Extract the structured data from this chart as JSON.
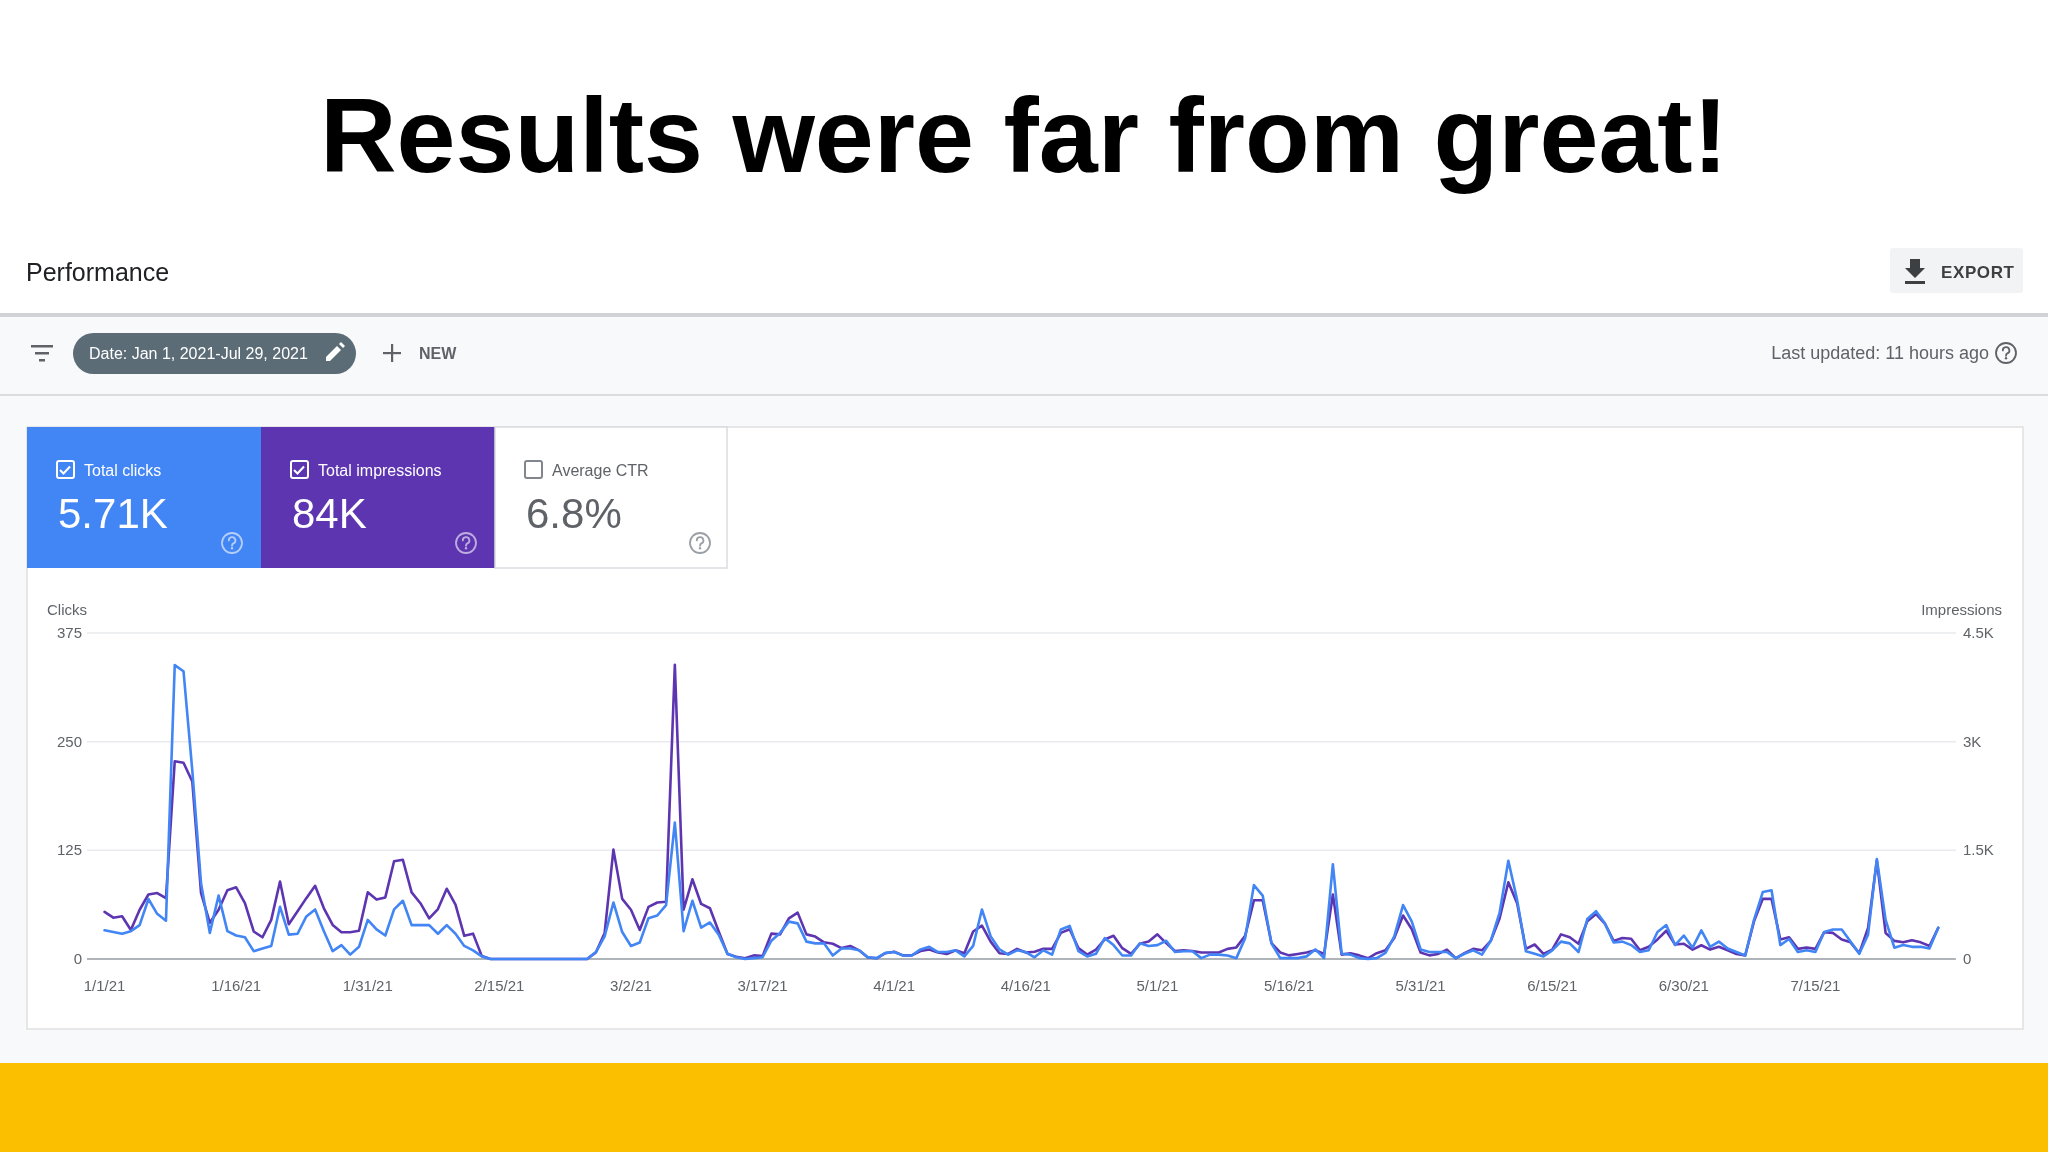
{
  "chart_data": {
    "type": "line",
    "title": "Results were far from great!",
    "subtitle": "Performance",
    "ylabel": "Clicks",
    "y2label": "Impressions",
    "annotations": [
      "EXPORT",
      "Date: Jan 1, 2021-Jul 29, 2021",
      "NEW",
      "Last updated: 11 hours ago",
      "5.71K",
      "84K",
      "Average CTR",
      "6.8%"
    ],
    "x": [
      "2021-01-01",
      "2021-01-02",
      "2021-01-03",
      "2021-01-04",
      "2021-01-05",
      "2021-01-06",
      "2021-01-07",
      "2021-01-08",
      "2021-01-09",
      "2021-01-10",
      "2021-01-11",
      "2021-01-12",
      "2021-01-13",
      "2021-01-14",
      "2021-01-15",
      "2021-01-16",
      "2021-01-17",
      "2021-01-18",
      "2021-01-19",
      "2021-01-20",
      "2021-01-21",
      "2021-01-22",
      "2021-01-23",
      "2021-01-24",
      "2021-01-25",
      "2021-01-26",
      "2021-01-27",
      "2021-01-28",
      "2021-01-29",
      "2021-01-30",
      "2021-01-31",
      "2021-02-01",
      "2021-02-02",
      "2021-02-03",
      "2021-02-04",
      "2021-02-05",
      "2021-02-06",
      "2021-02-07",
      "2021-02-08",
      "2021-02-09",
      "2021-02-10",
      "2021-02-11",
      "2021-02-12",
      "2021-02-13",
      "2021-02-14",
      "2021-02-15",
      "2021-02-16",
      "2021-02-17",
      "2021-02-18",
      "2021-02-19",
      "2021-02-20",
      "2021-02-21",
      "2021-02-22",
      "2021-02-23",
      "2021-02-24",
      "2021-02-25",
      "2021-02-26",
      "2021-02-27",
      "2021-02-28",
      "2021-03-01",
      "2021-03-02",
      "2021-03-03",
      "2021-03-04",
      "2021-03-05",
      "2021-03-06",
      "2021-03-07",
      "2021-03-08",
      "2021-03-09",
      "2021-03-10",
      "2021-03-11",
      "2021-03-12",
      "2021-03-13",
      "2021-03-14",
      "2021-03-15",
      "2021-03-16",
      "2021-03-17",
      "2021-03-18",
      "2021-03-19",
      "2021-03-20",
      "2021-03-21",
      "2021-03-22",
      "2021-03-23",
      "2021-03-24",
      "2021-03-25",
      "2021-03-26",
      "2021-03-27",
      "2021-03-28",
      "2021-03-29",
      "2021-03-30",
      "2021-03-31",
      "2021-04-01",
      "2021-04-02",
      "2021-04-03",
      "2021-04-04",
      "2021-04-05",
      "2021-04-06",
      "2021-04-07",
      "2021-04-08",
      "2021-04-09",
      "2021-04-10",
      "2021-04-11",
      "2021-04-12",
      "2021-04-13",
      "2021-04-14",
      "2021-04-15",
      "2021-04-16",
      "2021-04-17",
      "2021-04-18",
      "2021-04-19",
      "2021-04-20",
      "2021-04-21",
      "2021-04-22",
      "2021-04-23",
      "2021-04-24",
      "2021-04-25",
      "2021-04-26",
      "2021-04-27",
      "2021-04-28",
      "2021-04-29",
      "2021-04-30",
      "2021-05-01",
      "2021-05-02",
      "2021-05-03",
      "2021-05-04",
      "2021-05-05",
      "2021-05-06",
      "2021-05-07",
      "2021-05-08",
      "2021-05-09",
      "2021-05-10",
      "2021-05-11",
      "2021-05-12",
      "2021-05-13",
      "2021-05-14",
      "2021-05-15",
      "2021-05-16",
      "2021-05-17",
      "2021-05-18",
      "2021-05-19",
      "2021-05-20",
      "2021-05-21",
      "2021-05-22",
      "2021-05-23",
      "2021-05-24",
      "2021-05-25",
      "2021-05-26",
      "2021-05-27",
      "2021-05-28",
      "2021-05-29",
      "2021-05-30",
      "2021-05-31",
      "2021-06-01",
      "2021-06-02",
      "2021-06-03",
      "2021-06-04",
      "2021-06-05",
      "2021-06-06",
      "2021-06-07",
      "2021-06-08",
      "2021-06-09",
      "2021-06-10",
      "2021-06-11",
      "2021-06-12",
      "2021-06-13",
      "2021-06-14",
      "2021-06-15",
      "2021-06-16",
      "2021-06-17",
      "2021-06-18",
      "2021-06-19",
      "2021-06-20",
      "2021-06-21",
      "2021-06-22",
      "2021-06-23",
      "2021-06-24",
      "2021-06-25",
      "2021-06-26",
      "2021-06-27",
      "2021-06-28",
      "2021-06-29",
      "2021-06-30",
      "2021-07-01",
      "2021-07-02",
      "2021-07-03",
      "2021-07-04",
      "2021-07-05",
      "2021-07-06",
      "2021-07-07",
      "2021-07-08",
      "2021-07-09",
      "2021-07-10",
      "2021-07-11",
      "2021-07-12",
      "2021-07-13",
      "2021-07-14",
      "2021-07-15",
      "2021-07-16",
      "2021-07-17",
      "2021-07-18",
      "2021-07-19",
      "2021-07-20",
      "2021-07-21",
      "2021-07-22",
      "2021-07-23",
      "2021-07-24",
      "2021-07-25",
      "2021-07-26",
      "2021-07-27",
      "2021-07-28",
      "2021-07-29"
    ],
    "series": [
      {
        "name": "Total clicks",
        "color": "#4285f4",
        "values": [
          33,
          31,
          29,
          32,
          39,
          69,
          52,
          44,
          338,
          331,
          217,
          87,
          30,
          73,
          32,
          27,
          25,
          9,
          12,
          15,
          60,
          28,
          29,
          49,
          57,
          32,
          9,
          16,
          5,
          14,
          45,
          34,
          27,
          57,
          67,
          39,
          39,
          39,
          29,
          39,
          29,
          15,
          10,
          3,
          0,
          0,
          0,
          0,
          0,
          0,
          0,
          0,
          0,
          0,
          0,
          0,
          8,
          26,
          65,
          31,
          15,
          19,
          47,
          50,
          62,
          157,
          32,
          67,
          36,
          42,
          28,
          6,
          2,
          0,
          1,
          2,
          21,
          30,
          43,
          41,
          20,
          18,
          18,
          4,
          12,
          12,
          10,
          2,
          1,
          7,
          8,
          4,
          4,
          11,
          14,
          8,
          8,
          10,
          3,
          15,
          57,
          26,
          11,
          5,
          10,
          8,
          2,
          10,
          5,
          34,
          38,
          9,
          3,
          6,
          24,
          16,
          4,
          4,
          18,
          15,
          16,
          21,
          8,
          9,
          9,
          1,
          5,
          5,
          4,
          1,
          24,
          85,
          73,
          18,
          1,
          1,
          1,
          3,
          11,
          1,
          109,
          6,
          5,
          1,
          0,
          1,
          7,
          26,
          62,
          43,
          11,
          8,
          8,
          8,
          1,
          6,
          10,
          5,
          21,
          53,
          113,
          68,
          9,
          6,
          3,
          10,
          20,
          18,
          8,
          46,
          55,
          41,
          19,
          20,
          16,
          8,
          10,
          31,
          39,
          16,
          27,
          13,
          33,
          14,
          20,
          12,
          8,
          4,
          45,
          77,
          79,
          16,
          23,
          8,
          10,
          8,
          31,
          34,
          34,
          20,
          6,
          28,
          115,
          45,
          13,
          16,
          14,
          14,
          12,
          36
        ]
      },
      {
        "name": "Total impressions",
        "color": "#5e35b1",
        "axis": "y2",
        "values": [
          650,
          570,
          590,
          400,
          680,
          890,
          910,
          840,
          2730,
          2710,
          2450,
          910,
          500,
          680,
          950,
          990,
          770,
          380,
          300,
          540,
          1070,
          480,
          660,
          840,
          1010,
          700,
          470,
          370,
          370,
          390,
          920,
          820,
          850,
          1350,
          1370,
          920,
          770,
          560,
          690,
          970,
          750,
          320,
          350,
          40,
          0,
          0,
          0,
          0,
          0,
          0,
          0,
          0,
          0,
          0,
          0,
          0,
          90,
          360,
          1510,
          830,
          680,
          400,
          720,
          780,
          790,
          4060,
          680,
          1100,
          760,
          700,
          380,
          70,
          30,
          10,
          50,
          40,
          350,
          340,
          560,
          640,
          340,
          310,
          230,
          210,
          150,
          180,
          120,
          20,
          10,
          80,
          100,
          50,
          50,
          110,
          130,
          90,
          70,
          120,
          80,
          380,
          460,
          240,
          80,
          70,
          140,
          90,
          100,
          140,
          140,
          360,
          410,
          150,
          60,
          130,
          270,
          320,
          150,
          70,
          210,
          240,
          340,
          220,
          110,
          120,
          110,
          90,
          90,
          90,
          140,
          160,
          320,
          810,
          810,
          220,
          90,
          50,
          70,
          90,
          120,
          70,
          890,
          60,
          80,
          50,
          10,
          80,
          120,
          290,
          600,
          410,
          90,
          50,
          70,
          130,
          10,
          80,
          140,
          120,
          250,
          560,
          1060,
          770,
          140,
          200,
          70,
          130,
          340,
          300,
          210,
          520,
          620,
          490,
          250,
          290,
          280,
          120,
          170,
          270,
          390,
          200,
          210,
          130,
          190,
          130,
          170,
          120,
          70,
          50,
          520,
          830,
          830,
          270,
          300,
          140,
          160,
          140,
          370,
          360,
          270,
          230,
          80,
          430,
          1360,
          360,
          250,
          230,
          260,
          230,
          180,
          430
        ]
      }
    ],
    "xlim": [
      "2020-12-30",
      "2021-07-31"
    ],
    "xticks": [
      {
        "value": "2021-01-01",
        "label": "1/1/21"
      },
      {
        "value": "2021-01-16",
        "label": "1/16/21"
      },
      {
        "value": "2021-01-31",
        "label": "1/31/21"
      },
      {
        "value": "2021-02-15",
        "label": "2/15/21"
      },
      {
        "value": "2021-03-02",
        "label": "3/2/21"
      },
      {
        "value": "2021-03-17",
        "label": "3/17/21"
      },
      {
        "value": "2021-04-01",
        "label": "4/1/21"
      },
      {
        "value": "2021-04-16",
        "label": "4/16/21"
      },
      {
        "value": "2021-05-01",
        "label": "5/1/21"
      },
      {
        "value": "2021-05-16",
        "label": "5/16/21"
      },
      {
        "value": "2021-05-31",
        "label": "5/31/21"
      },
      {
        "value": "2021-06-15",
        "label": "6/15/21"
      },
      {
        "value": "2021-06-30",
        "label": "6/30/21"
      },
      {
        "value": "2021-07-15",
        "label": "7/15/21"
      }
    ],
    "ylim": [
      0,
      375
    ],
    "yticks": [
      0,
      125,
      250,
      375
    ],
    "y2lim": [
      0,
      4500
    ],
    "y2ticks": [
      0,
      {
        "value": 1500,
        "label": "1.5K"
      },
      {
        "value": 3000,
        "label": "3K"
      },
      {
        "value": 4500,
        "label": "4.5K"
      }
    ],
    "grid": "y",
    "legend": "top left"
  }
}
